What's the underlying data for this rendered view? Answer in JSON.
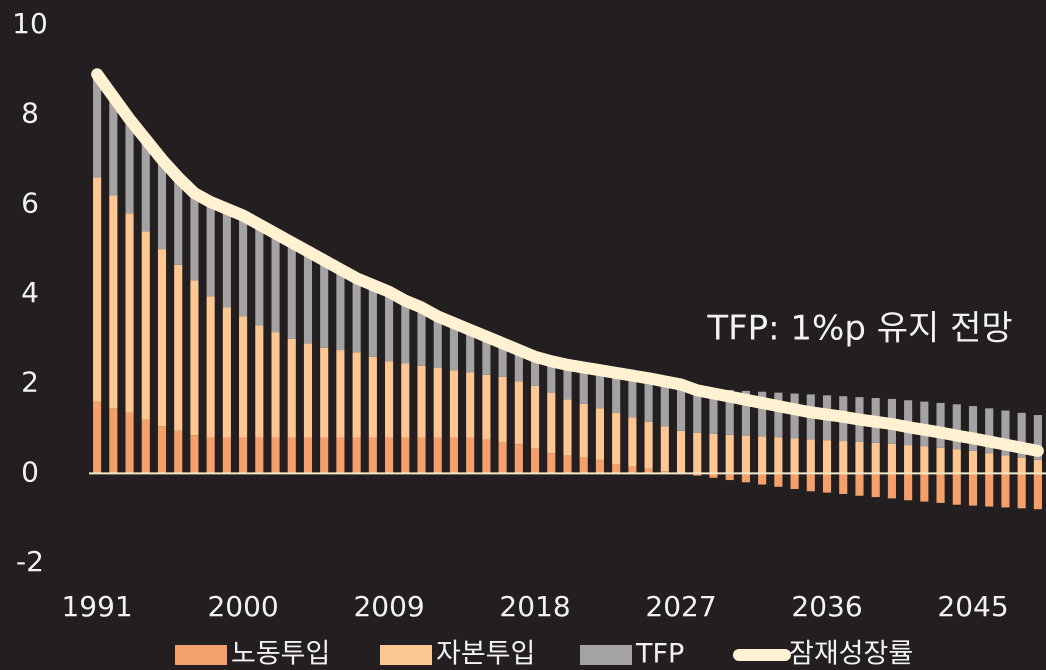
{
  "chart_data": {
    "type": "bar",
    "stacked": true,
    "annotation": "TFP: 1%p 유지 전망",
    "x": [
      1991,
      1992,
      1993,
      1994,
      1995,
      1996,
      1997,
      1998,
      1999,
      2000,
      2001,
      2002,
      2003,
      2004,
      2005,
      2006,
      2007,
      2008,
      2009,
      2010,
      2011,
      2012,
      2013,
      2014,
      2015,
      2016,
      2017,
      2018,
      2019,
      2020,
      2021,
      2022,
      2023,
      2024,
      2025,
      2026,
      2027,
      2028,
      2029,
      2030,
      2031,
      2032,
      2033,
      2034,
      2035,
      2036,
      2037,
      2038,
      2039,
      2040,
      2041,
      2042,
      2043,
      2044,
      2045,
      2046,
      2047,
      2048,
      2049
    ],
    "xlim": [
      1990.5,
      2049.5
    ],
    "xticks": [
      1991,
      2000,
      2009,
      2018,
      2027,
      2036,
      2045
    ],
    "ylim": [
      -2,
      10
    ],
    "yticks": [
      -2,
      0,
      2,
      4,
      6,
      8,
      10
    ],
    "series": [
      {
        "name": "노동투입",
        "type": "bar",
        "color": "#f4a06a",
        "values": [
          1.6,
          1.45,
          1.35,
          1.2,
          1.05,
          0.95,
          0.85,
          0.8,
          0.8,
          0.8,
          0.8,
          0.8,
          0.8,
          0.8,
          0.8,
          0.8,
          0.8,
          0.8,
          0.8,
          0.8,
          0.8,
          0.8,
          0.8,
          0.8,
          0.75,
          0.7,
          0.65,
          0.55,
          0.45,
          0.4,
          0.35,
          0.3,
          0.2,
          0.15,
          0.1,
          0.05,
          0,
          -0.05,
          -0.1,
          -0.15,
          -0.2,
          -0.25,
          -0.3,
          -0.35,
          -0.4,
          -0.43,
          -0.46,
          -0.5,
          -0.53,
          -0.56,
          -0.6,
          -0.63,
          -0.66,
          -0.7,
          -0.72,
          -0.74,
          -0.76,
          -0.78,
          -0.8
        ]
      },
      {
        "name": "자본투입",
        "type": "bar",
        "color": "#fdc793",
        "values": [
          5.0,
          4.75,
          4.45,
          4.2,
          3.95,
          3.7,
          3.45,
          3.15,
          2.9,
          2.7,
          2.5,
          2.35,
          2.2,
          2.1,
          2.0,
          1.95,
          1.9,
          1.8,
          1.7,
          1.65,
          1.6,
          1.55,
          1.5,
          1.45,
          1.45,
          1.45,
          1.4,
          1.4,
          1.35,
          1.25,
          1.2,
          1.15,
          1.15,
          1.1,
          1.05,
          1.0,
          0.95,
          0.9,
          0.88,
          0.86,
          0.84,
          0.82,
          0.8,
          0.78,
          0.76,
          0.74,
          0.72,
          0.7,
          0.68,
          0.66,
          0.63,
          0.6,
          0.57,
          0.54,
          0.5,
          0.45,
          0.4,
          0.35,
          0.3
        ]
      },
      {
        "name": "TFP",
        "type": "bar",
        "color": "#a3a3a3",
        "values": [
          2.3,
          2.2,
          2.1,
          2.05,
          2.0,
          1.95,
          1.95,
          2.1,
          2.2,
          2.25,
          2.25,
          2.2,
          2.15,
          2.05,
          1.95,
          1.8,
          1.65,
          1.6,
          1.55,
          1.4,
          1.3,
          1.15,
          1.05,
          0.95,
          0.85,
          0.75,
          0.7,
          0.65,
          0.7,
          0.77,
          0.81,
          0.85,
          0.89,
          0.93,
          0.97,
          1.0,
          1.03,
          1,
          1,
          1,
          1,
          1,
          1,
          1,
          1,
          1,
          1,
          1,
          1,
          1,
          1,
          1,
          1,
          1,
          1,
          1,
          1,
          1,
          1
        ]
      },
      {
        "name": "잠재성장률",
        "type": "line",
        "color": "#fff1d2",
        "values": [
          8.9,
          8.4,
          7.9,
          7.45,
          7.0,
          6.6,
          6.25,
          6.05,
          5.9,
          5.75,
          5.55,
          5.35,
          5.15,
          4.95,
          4.75,
          4.55,
          4.35,
          4.2,
          4.05,
          3.85,
          3.7,
          3.5,
          3.35,
          3.2,
          3.05,
          2.9,
          2.75,
          2.6,
          2.5,
          2.42,
          2.36,
          2.3,
          2.24,
          2.18,
          2.12,
          2.05,
          1.98,
          1.85,
          1.78,
          1.71,
          1.64,
          1.57,
          1.5,
          1.43,
          1.36,
          1.31,
          1.26,
          1.2,
          1.15,
          1.1,
          1.03,
          0.97,
          0.91,
          0.84,
          0.78,
          0.71,
          0.64,
          0.57,
          0.5
        ]
      }
    ]
  }
}
